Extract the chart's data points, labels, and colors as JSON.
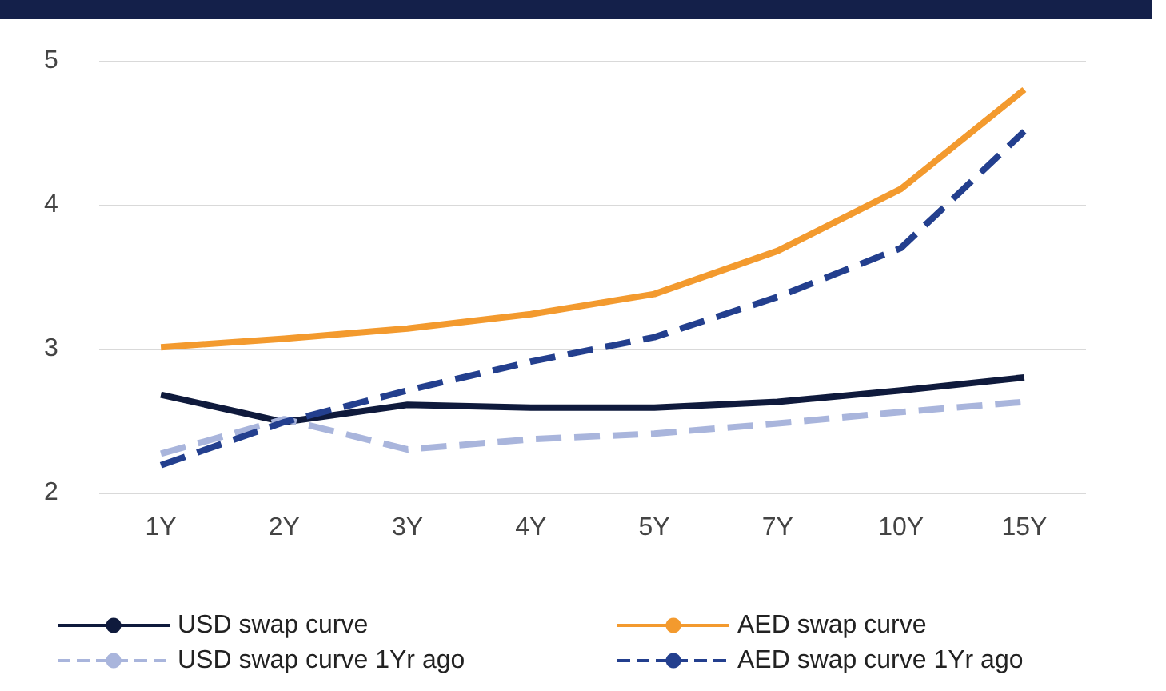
{
  "chart_data": {
    "type": "line",
    "categories": [
      "1Y",
      "2Y",
      "3Y",
      "4Y",
      "5Y",
      "7Y",
      "10Y",
      "15Y"
    ],
    "series": [
      {
        "name": "USD swap curve",
        "color": "#0f1a3c",
        "line_style": "solid",
        "values": [
          2.68,
          2.49,
          2.61,
          2.59,
          2.59,
          2.63,
          2.71,
          2.8
        ]
      },
      {
        "name": "AED swap curve",
        "color": "#f39a2e",
        "line_style": "solid",
        "values": [
          3.01,
          3.07,
          3.14,
          3.24,
          3.38,
          3.68,
          4.11,
          4.8
        ]
      },
      {
        "name": "USD swap curve 1Yr ago",
        "color": "#a9b5dc",
        "line_style": "dashed",
        "values": [
          2.27,
          2.51,
          2.3,
          2.37,
          2.41,
          2.48,
          2.56,
          2.63
        ]
      },
      {
        "name": "AED swap curve 1Yr ago",
        "color": "#233f8e",
        "line_style": "dashed",
        "values": [
          2.19,
          2.49,
          2.71,
          2.91,
          3.08,
          3.36,
          3.7,
          4.51
        ]
      }
    ],
    "ylim": [
      2,
      5
    ],
    "yticks": [
      2,
      3,
      4,
      5
    ],
    "grid": "y",
    "legend": "bottom",
    "marker": "none"
  }
}
